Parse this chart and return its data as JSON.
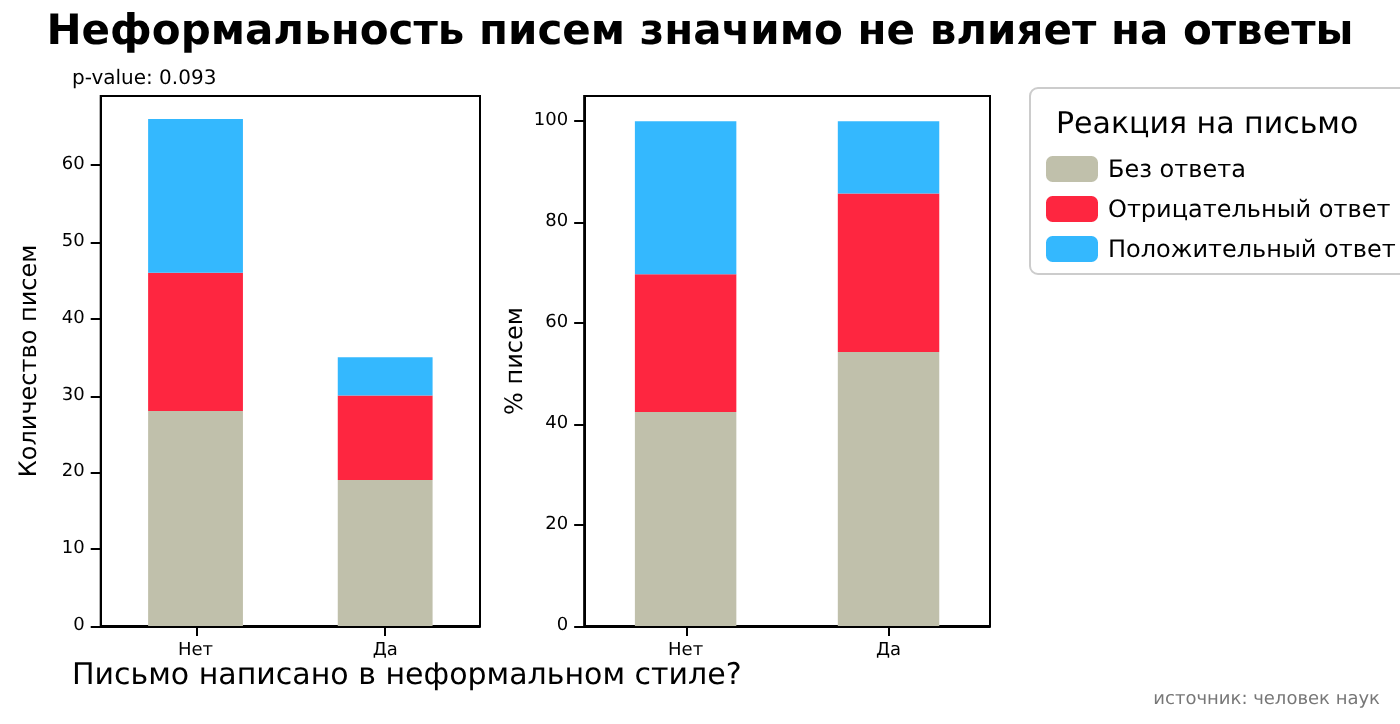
{
  "chart_data": [
    {
      "type": "bar",
      "title": "Неформальность писем значимо не влияет на ответы",
      "xlabel": "Письмо написано в неформальном стиле?",
      "ylabel": "Количество писем",
      "annotations": [
        "p-value: 0.093"
      ],
      "stacked": true,
      "categories": [
        "Нет",
        "Да"
      ],
      "series": [
        {
          "color": "#c0c0ab",
          "values": [
            28,
            19
          ]
        },
        {
          "color": "#fe2640",
          "values": [
            18,
            11
          ]
        },
        {
          "color": "#34b8fe",
          "values": [
            20,
            5
          ]
        }
      ],
      "ylim": [
        0,
        69
      ],
      "yticks": [
        0,
        10,
        20,
        30,
        40,
        50,
        60
      ],
      "grid": false
    },
    {
      "type": "bar",
      "ylabel": "% писем",
      "legend_title": "Реакция на письмо",
      "legend": "right",
      "annotations": [
        "источник: человек наук"
      ],
      "stacked": true,
      "categories": [
        "Нет",
        "Да"
      ],
      "series": [
        {
          "name": "Без ответа",
          "color": "#c0c0ab",
          "values": [
            42.4,
            54.3
          ]
        },
        {
          "name": "Отрицательный ответ",
          "color": "#fe2640",
          "values": [
            27.3,
            31.4
          ]
        },
        {
          "name": "Положительный ответ",
          "color": "#34b8fe",
          "values": [
            30.3,
            14.3
          ]
        }
      ],
      "ylim": [
        0,
        105
      ],
      "yticks": [
        0,
        20,
        40,
        60,
        80,
        100
      ],
      "grid": false
    }
  ]
}
